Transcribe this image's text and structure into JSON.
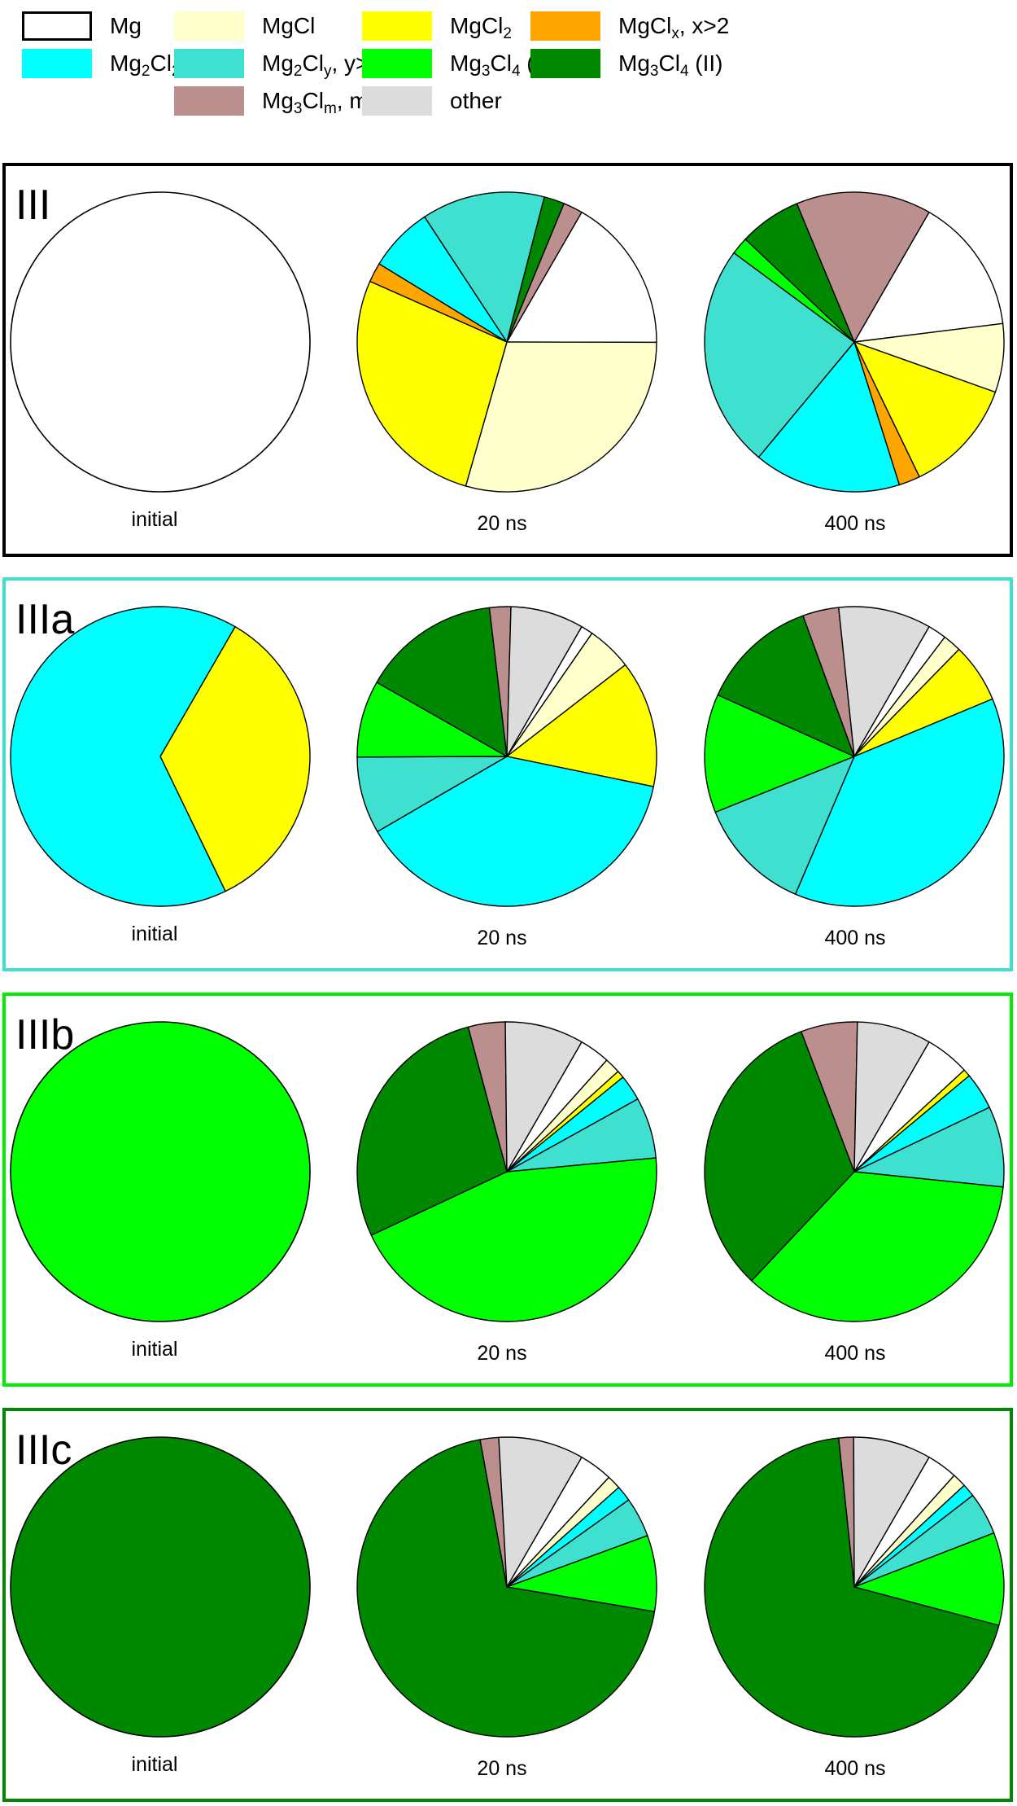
{
  "chart_data": {
    "type": "pie",
    "legend": [
      {
        "key": "Mg",
        "base": "Mg",
        "sub": "",
        "mid": "",
        "sub2": "",
        "tail": "",
        "color": "#ffffff"
      },
      {
        "key": "MgCl",
        "base": "MgCl",
        "sub": "",
        "mid": "",
        "sub2": "",
        "tail": "",
        "color": "#ffffcc"
      },
      {
        "key": "MgCl2",
        "base": "MgCl",
        "sub": "2",
        "mid": "",
        "sub2": "",
        "tail": "",
        "color": "#ffff00"
      },
      {
        "key": "MgClx",
        "base": "MgCl",
        "sub": "x",
        "mid": "",
        "sub2": "",
        "tail": ", x>2",
        "color": "#ffa500"
      },
      {
        "key": "Mg2Cl2",
        "base": "Mg",
        "sub": "2",
        "mid": "Cl",
        "sub2": "2",
        "tail": "",
        "color": "#00ffff"
      },
      {
        "key": "Mg2Cly",
        "base": "Mg",
        "sub": "2",
        "mid": "Cl",
        "sub2": "y",
        "tail": ", y>2",
        "color": "#40e0d0"
      },
      {
        "key": "Mg3Cl4I",
        "base": "Mg",
        "sub": "3",
        "mid": "Cl",
        "sub2": "4",
        "tail": " (I)",
        "color": "#00ff00"
      },
      {
        "key": "Mg3Cl4II",
        "base": "Mg",
        "sub": "3",
        "mid": "Cl",
        "sub2": "4",
        "tail": " (II)",
        "color": "#008800"
      },
      {
        "key": "Mg3Clm",
        "base": "Mg",
        "sub": "3",
        "mid": "Cl",
        "sub2": "m",
        "tail": ", m>4",
        "color": "#bc8f8f"
      },
      {
        "key": "other",
        "base": "other",
        "sub": "",
        "mid": "",
        "sub2": "",
        "tail": "",
        "color": "#dcdcdc"
      }
    ],
    "panels": [
      {
        "title": "III",
        "border_color": "#000000",
        "pies": [
          {
            "label": "initial",
            "slices": [
              {
                "category": "Mg",
                "value": 100
              }
            ]
          },
          {
            "label": "20 ns",
            "slices": [
              {
                "category": "Mg",
                "value": 16.7
              },
              {
                "category": "MgCl",
                "value": 29.4
              },
              {
                "category": "MgCl2",
                "value": 27.2
              },
              {
                "category": "MgClx",
                "value": 2.1
              },
              {
                "category": "Mg2Cl2",
                "value": 7.0
              },
              {
                "category": "Mg2Cly",
                "value": 13.3
              },
              {
                "category": "Mg3Cl4II",
                "value": 2.2
              },
              {
                "category": "Mg3Clm",
                "value": 2.1
              }
            ]
          },
          {
            "label": "400 ns",
            "slices": [
              {
                "category": "Mg",
                "value": 14.7
              },
              {
                "category": "MgCl",
                "value": 7.4
              },
              {
                "category": "MgCl2",
                "value": 12.4
              },
              {
                "category": "MgClx",
                "value": 2.3
              },
              {
                "category": "Mg2Cl2",
                "value": 15.9
              },
              {
                "category": "Mg2Cly",
                "value": 24.1
              },
              {
                "category": "Mg3Cl4I",
                "value": 1.9
              },
              {
                "category": "Mg3Cl4II",
                "value": 6.7
              },
              {
                "category": "Mg3Clm",
                "value": 14.6
              }
            ]
          }
        ]
      },
      {
        "title": "IIIa",
        "border_color": "#40e0d0",
        "pies": [
          {
            "label": "initial",
            "slices": [
              {
                "category": "MgCl2",
                "value": 34.5
              },
              {
                "category": "Mg2Cl2",
                "value": 65.5
              }
            ]
          },
          {
            "label": "20 ns",
            "slices": [
              {
                "category": "Mg",
                "value": 1.3
              },
              {
                "category": "MgCl",
                "value": 4.9
              },
              {
                "category": "MgCl2",
                "value": 13.7
              },
              {
                "category": "Mg2Cl2",
                "value": 38.4
              },
              {
                "category": "Mg2Cly",
                "value": 8.3
              },
              {
                "category": "Mg3Cl4I",
                "value": 8.3
              },
              {
                "category": "Mg3Cl4II",
                "value": 14.9
              },
              {
                "category": "Mg3Clm",
                "value": 2.3
              },
              {
                "category": "other",
                "value": 7.9
              }
            ]
          },
          {
            "label": "400 ns",
            "slices": [
              {
                "category": "Mg",
                "value": 2.0
              },
              {
                "category": "MgCl",
                "value": 2.0
              },
              {
                "category": "MgCl2",
                "value": 6.4
              },
              {
                "category": "Mg2Cl2",
                "value": 37.7
              },
              {
                "category": "Mg2Cly",
                "value": 12.5
              },
              {
                "category": "Mg3Cl4I",
                "value": 12.8
              },
              {
                "category": "Mg3Cl4II",
                "value": 12.7
              },
              {
                "category": "Mg3Clm",
                "value": 3.9
              },
              {
                "category": "other",
                "value": 10.0
              }
            ]
          }
        ]
      },
      {
        "title": "IIIb",
        "border_color": "#00ee00",
        "pies": [
          {
            "label": "initial",
            "slices": [
              {
                "category": "Mg3Cl4I",
                "value": 100
              }
            ]
          },
          {
            "label": "20 ns",
            "slices": [
              {
                "category": "Mg",
                "value": 3.3
              },
              {
                "category": "MgCl",
                "value": 1.7
              },
              {
                "category": "MgCl2",
                "value": 0.8
              },
              {
                "category": "Mg2Cl2",
                "value": 2.8
              },
              {
                "category": "Mg2Cly",
                "value": 6.6
              },
              {
                "category": "Mg3Cl4I",
                "value": 44.5
              },
              {
                "category": "Mg3Cl4II",
                "value": 27.8
              },
              {
                "category": "Mg3Clm",
                "value": 4.0
              },
              {
                "category": "other",
                "value": 8.5
              }
            ]
          },
          {
            "label": "400 ns",
            "slices": [
              {
                "category": "Mg",
                "value": 4.8
              },
              {
                "category": "MgCl2",
                "value": 0.8
              },
              {
                "category": "Mg2Cl2",
                "value": 4.0
              },
              {
                "category": "Mg2Cly",
                "value": 8.7
              },
              {
                "category": "Mg3Cl4I",
                "value": 35.4
              },
              {
                "category": "Mg3Cl4II",
                "value": 32.2
              },
              {
                "category": "Mg3Clm",
                "value": 6.1
              },
              {
                "category": "other",
                "value": 8.0
              }
            ]
          }
        ]
      },
      {
        "title": "IIIc",
        "border_color": "#008800",
        "pies": [
          {
            "label": "initial",
            "slices": [
              {
                "category": "Mg3Cl4II",
                "value": 100
              }
            ]
          },
          {
            "label": "20 ns",
            "slices": [
              {
                "category": "Mg",
                "value": 3.6
              },
              {
                "category": "MgCl",
                "value": 1.5
              },
              {
                "category": "Mg2Cl2",
                "value": 1.7
              },
              {
                "category": "Mg2Cly",
                "value": 4.3
              },
              {
                "category": "Mg3Cl4I",
                "value": 8.2
              },
              {
                "category": "Mg3Cl4II",
                "value": 69.5
              },
              {
                "category": "Mg3Clm",
                "value": 2.0
              },
              {
                "category": "other",
                "value": 9.2
              }
            ]
          },
          {
            "label": "400 ns",
            "slices": [
              {
                "category": "Mg",
                "value": 3.3
              },
              {
                "category": "MgCl",
                "value": 1.5
              },
              {
                "category": "Mg2Cl2",
                "value": 1.4
              },
              {
                "category": "Mg2Cly",
                "value": 4.6
              },
              {
                "category": "Mg3Cl4I",
                "value": 10.0
              },
              {
                "category": "Mg3Cl4II",
                "value": 69.2
              },
              {
                "category": "Mg3Clm",
                "value": 1.6
              },
              {
                "category": "other",
                "value": 8.4
              }
            ]
          }
        ]
      }
    ]
  }
}
